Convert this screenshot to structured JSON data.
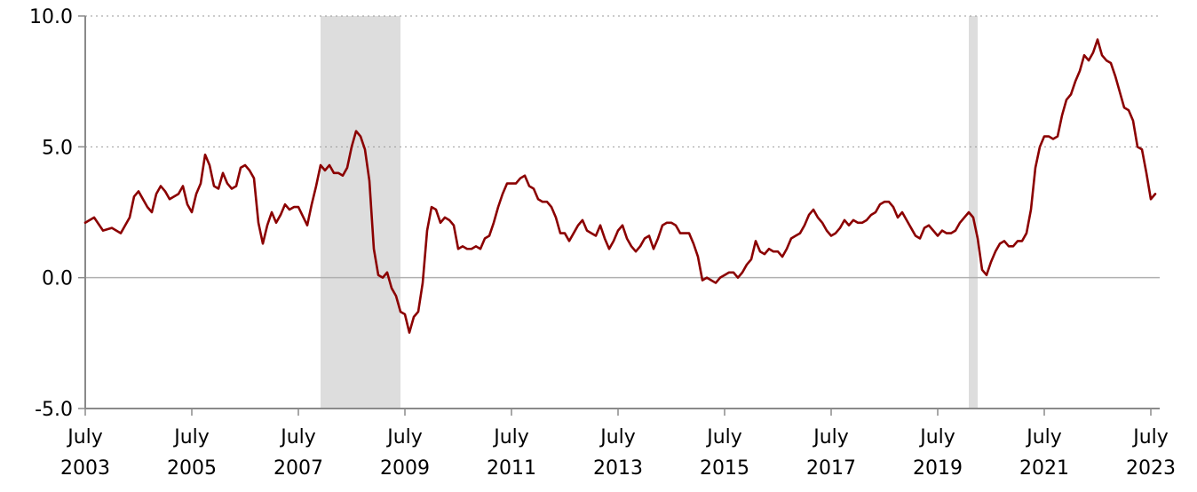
{
  "chart_data": {
    "type": "line",
    "title": "",
    "xlabel": "",
    "ylabel": "",
    "ylim": [
      -5.0,
      10.0
    ],
    "y_ticks": [
      "10.0",
      "5.0",
      "0.0",
      "-5.0"
    ],
    "x_range": [
      "2003-07",
      "2023-09"
    ],
    "x_ticks": [
      {
        "month": "July",
        "year": "2003"
      },
      {
        "month": "July",
        "year": "2005"
      },
      {
        "month": "July",
        "year": "2007"
      },
      {
        "month": "July",
        "year": "2009"
      },
      {
        "month": "July",
        "year": "2011"
      },
      {
        "month": "July",
        "year": "2013"
      },
      {
        "month": "July",
        "year": "2015"
      },
      {
        "month": "July",
        "year": "2017"
      },
      {
        "month": "July",
        "year": "2019"
      },
      {
        "month": "July",
        "year": "2021"
      },
      {
        "month": "July",
        "year": "2023"
      }
    ],
    "grid": true,
    "recessions": [
      {
        "start": "2007-12",
        "end": "2009-06"
      },
      {
        "start": "2020-02",
        "end": "2020-04"
      }
    ],
    "series": [
      {
        "color": "#8b0000",
        "points": [
          [
            "2003-07",
            2.1
          ],
          [
            "2003-09",
            2.3
          ],
          [
            "2003-11",
            1.8
          ],
          [
            "2004-01",
            1.9
          ],
          [
            "2004-03",
            1.7
          ],
          [
            "2004-05",
            2.3
          ],
          [
            "2004-06",
            3.1
          ],
          [
            "2004-07",
            3.3
          ],
          [
            "2004-09",
            2.7
          ],
          [
            "2004-10",
            2.5
          ],
          [
            "2004-11",
            3.2
          ],
          [
            "2004-12",
            3.5
          ],
          [
            "2005-01",
            3.3
          ],
          [
            "2005-02",
            3.0
          ],
          [
            "2005-04",
            3.2
          ],
          [
            "2005-05",
            3.5
          ],
          [
            "2005-06",
            2.8
          ],
          [
            "2005-07",
            2.5
          ],
          [
            "2005-08",
            3.2
          ],
          [
            "2005-09",
            3.6
          ],
          [
            "2005-10",
            4.7
          ],
          [
            "2005-11",
            4.3
          ],
          [
            "2005-12",
            3.5
          ],
          [
            "2006-01",
            3.4
          ],
          [
            "2006-02",
            4.0
          ],
          [
            "2006-03",
            3.6
          ],
          [
            "2006-04",
            3.4
          ],
          [
            "2006-05",
            3.5
          ],
          [
            "2006-06",
            4.2
          ],
          [
            "2006-07",
            4.3
          ],
          [
            "2006-08",
            4.1
          ],
          [
            "2006-09",
            3.8
          ],
          [
            "2006-10",
            2.1
          ],
          [
            "2006-11",
            1.3
          ],
          [
            "2006-12",
            2.0
          ],
          [
            "2007-01",
            2.5
          ],
          [
            "2007-02",
            2.1
          ],
          [
            "2007-03",
            2.4
          ],
          [
            "2007-04",
            2.8
          ],
          [
            "2007-05",
            2.6
          ],
          [
            "2007-06",
            2.7
          ],
          [
            "2007-07",
            2.7
          ],
          [
            "2007-09",
            2.0
          ],
          [
            "2007-10",
            2.8
          ],
          [
            "2007-11",
            3.5
          ],
          [
            "2007-12",
            4.3
          ],
          [
            "2008-01",
            4.1
          ],
          [
            "2008-02",
            4.3
          ],
          [
            "2008-03",
            4.0
          ],
          [
            "2008-04",
            4.0
          ],
          [
            "2008-05",
            3.9
          ],
          [
            "2008-06",
            4.2
          ],
          [
            "2008-07",
            5.0
          ],
          [
            "2008-08",
            5.6
          ],
          [
            "2008-09",
            5.4
          ],
          [
            "2008-10",
            4.9
          ],
          [
            "2008-11",
            3.7
          ],
          [
            "2008-12",
            1.1
          ],
          [
            "2009-01",
            0.1
          ],
          [
            "2009-02",
            0.0
          ],
          [
            "2009-03",
            0.2
          ],
          [
            "2009-04",
            -0.4
          ],
          [
            "2009-05",
            -0.7
          ],
          [
            "2009-06",
            -1.3
          ],
          [
            "2009-07",
            -1.4
          ],
          [
            "2009-08",
            -2.1
          ],
          [
            "2009-09",
            -1.5
          ],
          [
            "2009-10",
            -1.3
          ],
          [
            "2009-11",
            -0.2
          ],
          [
            "2009-12",
            1.8
          ],
          [
            "2010-01",
            2.7
          ],
          [
            "2010-02",
            2.6
          ],
          [
            "2010-03",
            2.1
          ],
          [
            "2010-04",
            2.3
          ],
          [
            "2010-05",
            2.2
          ],
          [
            "2010-06",
            2.0
          ],
          [
            "2010-07",
            1.1
          ],
          [
            "2010-08",
            1.2
          ],
          [
            "2010-09",
            1.1
          ],
          [
            "2010-10",
            1.1
          ],
          [
            "2010-11",
            1.2
          ],
          [
            "2010-12",
            1.1
          ],
          [
            "2011-01",
            1.5
          ],
          [
            "2011-02",
            1.6
          ],
          [
            "2011-03",
            2.1
          ],
          [
            "2011-04",
            2.7
          ],
          [
            "2011-05",
            3.2
          ],
          [
            "2011-06",
            3.6
          ],
          [
            "2011-07",
            3.6
          ],
          [
            "2011-08",
            3.6
          ],
          [
            "2011-09",
            3.8
          ],
          [
            "2011-10",
            3.9
          ],
          [
            "2011-11",
            3.5
          ],
          [
            "2011-12",
            3.4
          ],
          [
            "2012-01",
            3.0
          ],
          [
            "2012-02",
            2.9
          ],
          [
            "2012-03",
            2.9
          ],
          [
            "2012-04",
            2.7
          ],
          [
            "2012-05",
            2.3
          ],
          [
            "2012-06",
            1.7
          ],
          [
            "2012-07",
            1.7
          ],
          [
            "2012-08",
            1.4
          ],
          [
            "2012-09",
            1.7
          ],
          [
            "2012-10",
            2.0
          ],
          [
            "2012-11",
            2.2
          ],
          [
            "2012-12",
            1.8
          ],
          [
            "2013-01",
            1.7
          ],
          [
            "2013-02",
            1.6
          ],
          [
            "2013-03",
            2.0
          ],
          [
            "2013-04",
            1.5
          ],
          [
            "2013-05",
            1.1
          ],
          [
            "2013-06",
            1.4
          ],
          [
            "2013-07",
            1.8
          ],
          [
            "2013-08",
            2.0
          ],
          [
            "2013-09",
            1.5
          ],
          [
            "2013-10",
            1.2
          ],
          [
            "2013-11",
            1.0
          ],
          [
            "2013-12",
            1.2
          ],
          [
            "2014-01",
            1.5
          ],
          [
            "2014-02",
            1.6
          ],
          [
            "2014-03",
            1.1
          ],
          [
            "2014-04",
            1.5
          ],
          [
            "2014-05",
            2.0
          ],
          [
            "2014-06",
            2.1
          ],
          [
            "2014-07",
            2.1
          ],
          [
            "2014-08",
            2.0
          ],
          [
            "2014-09",
            1.7
          ],
          [
            "2014-10",
            1.7
          ],
          [
            "2014-11",
            1.7
          ],
          [
            "2014-12",
            1.3
          ],
          [
            "2015-01",
            0.8
          ],
          [
            "2015-02",
            -0.1
          ],
          [
            "2015-03",
            0.0
          ],
          [
            "2015-04",
            -0.1
          ],
          [
            "2015-05",
            -0.2
          ],
          [
            "2015-06",
            0.0
          ],
          [
            "2015-07",
            0.1
          ],
          [
            "2015-08",
            0.2
          ],
          [
            "2015-09",
            0.2
          ],
          [
            "2015-10",
            0.0
          ],
          [
            "2015-11",
            0.2
          ],
          [
            "2015-12",
            0.5
          ],
          [
            "2016-01",
            0.7
          ],
          [
            "2016-02",
            1.4
          ],
          [
            "2016-03",
            1.0
          ],
          [
            "2016-04",
            0.9
          ],
          [
            "2016-05",
            1.1
          ],
          [
            "2016-06",
            1.0
          ],
          [
            "2016-07",
            1.0
          ],
          [
            "2016-08",
            0.8
          ],
          [
            "2016-09",
            1.1
          ],
          [
            "2016-10",
            1.5
          ],
          [
            "2016-11",
            1.6
          ],
          [
            "2016-12",
            1.7
          ],
          [
            "2017-01",
            2.0
          ],
          [
            "2017-02",
            2.4
          ],
          [
            "2017-03",
            2.6
          ],
          [
            "2017-04",
            2.3
          ],
          [
            "2017-05",
            2.1
          ],
          [
            "2017-06",
            1.8
          ],
          [
            "2017-07",
            1.6
          ],
          [
            "2017-08",
            1.7
          ],
          [
            "2017-09",
            1.9
          ],
          [
            "2017-10",
            2.2
          ],
          [
            "2017-11",
            2.0
          ],
          [
            "2017-12",
            2.2
          ],
          [
            "2018-01",
            2.1
          ],
          [
            "2018-02",
            2.1
          ],
          [
            "2018-03",
            2.2
          ],
          [
            "2018-04",
            2.4
          ],
          [
            "2018-05",
            2.5
          ],
          [
            "2018-06",
            2.8
          ],
          [
            "2018-07",
            2.9
          ],
          [
            "2018-08",
            2.9
          ],
          [
            "2018-09",
            2.7
          ],
          [
            "2018-10",
            2.3
          ],
          [
            "2018-11",
            2.5
          ],
          [
            "2018-12",
            2.2
          ],
          [
            "2019-01",
            1.9
          ],
          [
            "2019-02",
            1.6
          ],
          [
            "2019-03",
            1.5
          ],
          [
            "2019-04",
            1.9
          ],
          [
            "2019-05",
            2.0
          ],
          [
            "2019-06",
            1.8
          ],
          [
            "2019-07",
            1.6
          ],
          [
            "2019-08",
            1.8
          ],
          [
            "2019-09",
            1.7
          ],
          [
            "2019-10",
            1.7
          ],
          [
            "2019-11",
            1.8
          ],
          [
            "2019-12",
            2.1
          ],
          [
            "2020-01",
            2.3
          ],
          [
            "2020-02",
            2.5
          ],
          [
            "2020-03",
            2.3
          ],
          [
            "2020-04",
            1.5
          ],
          [
            "2020-05",
            0.3
          ],
          [
            "2020-06",
            0.1
          ],
          [
            "2020-07",
            0.6
          ],
          [
            "2020-08",
            1.0
          ],
          [
            "2020-09",
            1.3
          ],
          [
            "2020-10",
            1.4
          ],
          [
            "2020-11",
            1.2
          ],
          [
            "2020-12",
            1.2
          ],
          [
            "2021-01",
            1.4
          ],
          [
            "2021-02",
            1.4
          ],
          [
            "2021-03",
            1.7
          ],
          [
            "2021-04",
            2.6
          ],
          [
            "2021-05",
            4.2
          ],
          [
            "2021-06",
            5.0
          ],
          [
            "2021-07",
            5.4
          ],
          [
            "2021-08",
            5.4
          ],
          [
            "2021-09",
            5.3
          ],
          [
            "2021-10",
            5.4
          ],
          [
            "2021-11",
            6.2
          ],
          [
            "2021-12",
            6.8
          ],
          [
            "2022-01",
            7.0
          ],
          [
            "2022-02",
            7.5
          ],
          [
            "2022-03",
            7.9
          ],
          [
            "2022-04",
            8.5
          ],
          [
            "2022-05",
            8.3
          ],
          [
            "2022-06",
            8.6
          ],
          [
            "2022-07",
            9.1
          ],
          [
            "2022-08",
            8.5
          ],
          [
            "2022-09",
            8.3
          ],
          [
            "2022-10",
            8.2
          ],
          [
            "2022-11",
            7.7
          ],
          [
            "2022-12",
            7.1
          ],
          [
            "2023-01",
            6.5
          ],
          [
            "2023-02",
            6.4
          ],
          [
            "2023-03",
            6.0
          ],
          [
            "2023-04",
            5.0
          ],
          [
            "2023-05",
            4.9
          ],
          [
            "2023-06",
            4.0
          ],
          [
            "2023-07",
            3.0
          ],
          [
            "2023-08",
            3.2
          ]
        ]
      }
    ]
  }
}
